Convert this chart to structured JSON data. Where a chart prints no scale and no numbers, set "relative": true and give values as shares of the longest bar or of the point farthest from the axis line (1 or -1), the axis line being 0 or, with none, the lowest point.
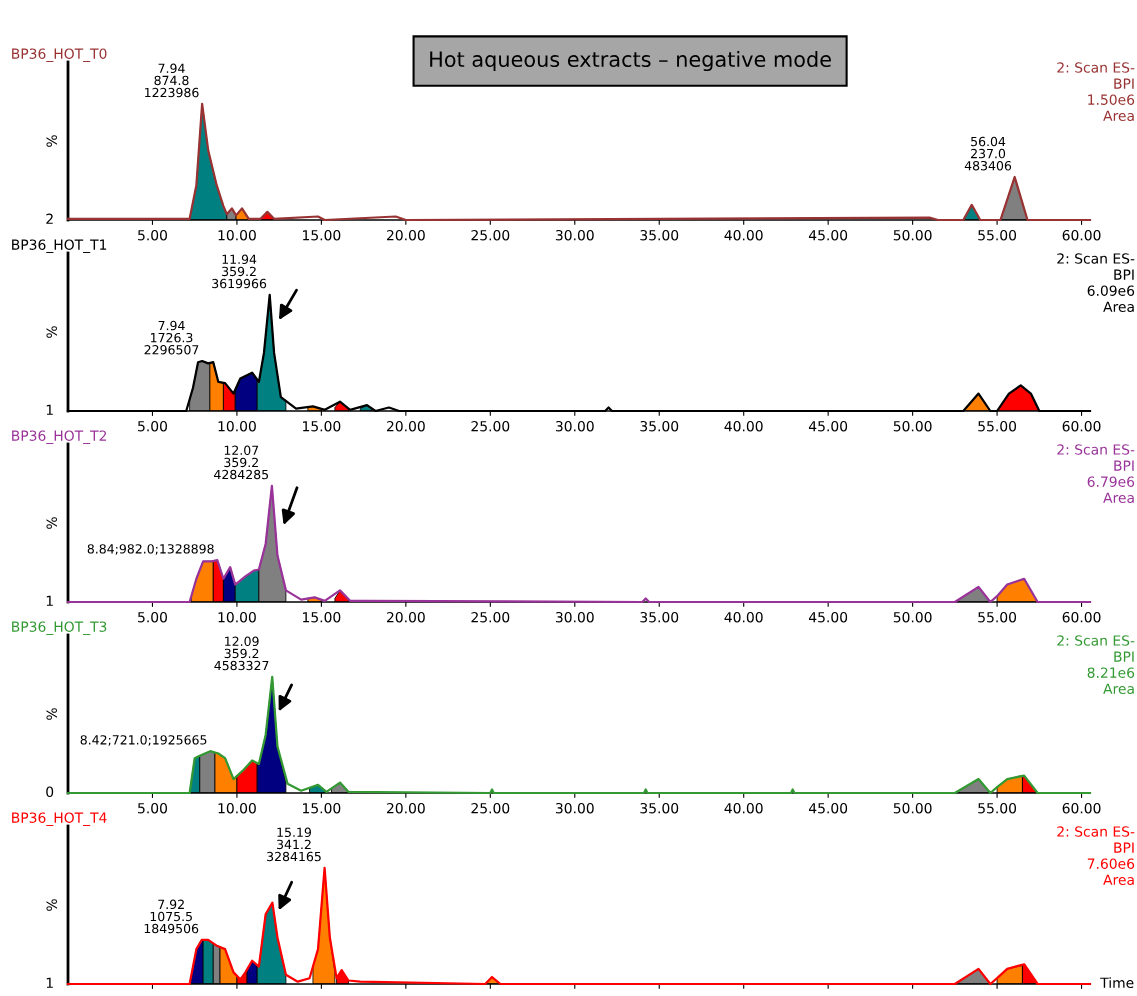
{
  "chart_data": [
    {
      "type": "line",
      "relative": true,
      "title": "BP36_HOT_T0",
      "subtitle": "2: Scan ES-\nBPI\n1.50e6\nArea",
      "ylabel": "%",
      "xlim": [
        0,
        60.5
      ],
      "xticks": [
        {
          "value": 5,
          "label": "5.00"
        },
        {
          "value": 10,
          "label": "10.00"
        },
        {
          "value": 15,
          "label": "15.00"
        },
        {
          "value": 20,
          "label": "20.00"
        },
        {
          "value": 25,
          "label": "25.00"
        },
        {
          "value": 30,
          "label": "30.00"
        },
        {
          "value": 35,
          "label": "35.00"
        },
        {
          "value": 40,
          "label": "40.00"
        },
        {
          "value": 45,
          "label": "45.00"
        },
        {
          "value": 50,
          "label": "50.00"
        },
        {
          "value": 55,
          "label": "55.00"
        },
        {
          "value": 60,
          "label": "60.00"
        }
      ],
      "grid": false,
      "marker": "none",
      "line_style": "solid",
      "annotations": [
        "Hot aqueous extracts – negative mode",
        {
          "text": "7.94\n874.8\n1223986",
          "x": 7.94,
          "y": 1.0
        },
        {
          "text": "56.04\n237.0\n483406",
          "x": 56.04,
          "y": 0.37
        },
        {
          "text": "2",
          "x": 0,
          "y": 0
        }
      ],
      "series": [
        {
          "type": "line",
          "color": "#993333",
          "x": [
            0,
            7.2,
            7.6,
            7.94,
            8.3,
            8.8,
            9.2,
            9.4,
            9.7,
            9.95,
            10.3,
            10.7,
            11.4,
            11.8,
            12.2,
            14.8,
            15.2,
            19.4,
            20,
            51,
            51.5,
            53,
            53.5,
            54,
            55.2,
            56.04,
            56.8,
            60.5
          ],
          "values": [
            0.01,
            0.01,
            0.3,
            1.0,
            0.6,
            0.3,
            0.12,
            0.05,
            0.1,
            0.04,
            0.1,
            0.01,
            0.01,
            0.07,
            0.01,
            0.03,
            0,
            0.03,
            0,
            0.02,
            0,
            0,
            0.13,
            0,
            0,
            0.37,
            0,
            0
          ]
        },
        {
          "type": "area",
          "color": "#008080",
          "x": [
            7.2,
            7.6,
            7.94,
            8.3,
            8.8,
            9.2,
            9.4
          ],
          "values": [
            0.01,
            0.3,
            1.0,
            0.6,
            0.3,
            0.12,
            0.05
          ]
        },
        {
          "type": "area",
          "color": "#808080",
          "x": [
            9.4,
            9.7,
            9.95
          ],
          "values": [
            0.05,
            0.1,
            0.04
          ]
        },
        {
          "type": "area",
          "color": "#ff8000",
          "x": [
            9.95,
            10.3,
            10.7
          ],
          "values": [
            0.04,
            0.1,
            0.01
          ]
        },
        {
          "type": "area",
          "color": "#ff0000",
          "x": [
            11.4,
            11.8,
            12.2
          ],
          "values": [
            0.01,
            0.07,
            0.01
          ]
        },
        {
          "type": "area",
          "color": "#008080",
          "x": [
            53,
            53.5,
            54
          ],
          "values": [
            0,
            0.13,
            0
          ]
        },
        {
          "type": "area",
          "color": "#808080",
          "x": [
            55.2,
            56.04,
            56.8
          ],
          "values": [
            0,
            0.37,
            0
          ]
        }
      ]
    },
    {
      "type": "line",
      "relative": true,
      "title": "BP36_HOT_T1",
      "subtitle": "2: Scan ES-\nBPI\n6.09e6\nArea",
      "ylabel": "%",
      "xlim": [
        0,
        60.5
      ],
      "xticks": [
        {
          "value": 5,
          "label": "5.00"
        },
        {
          "value": 10,
          "label": "10.00"
        },
        {
          "value": 15,
          "label": "15.00"
        },
        {
          "value": 20,
          "label": "20.00"
        },
        {
          "value": 25,
          "label": "25.00"
        },
        {
          "value": 30,
          "label": "30.00"
        },
        {
          "value": 35,
          "label": "35.00"
        },
        {
          "value": 40,
          "label": "40.00"
        },
        {
          "value": 45,
          "label": "45.00"
        },
        {
          "value": 50,
          "label": "50.00"
        },
        {
          "value": 55,
          "label": "55.00"
        },
        {
          "value": 60,
          "label": "60.00"
        }
      ],
      "grid": false,
      "marker": "none",
      "line_style": "solid",
      "annotations": [
        {
          "text": "11.94\n359.2\n3619966",
          "x": 11.94,
          "y": 1.0
        },
        {
          "text": "7.94\n1726.3\n2296507",
          "x": 7.94,
          "y": 0.43
        },
        {
          "text": "1",
          "x": 0,
          "y": 0
        }
      ],
      "series": [
        {
          "type": "line",
          "color": "#000000",
          "x": [
            0,
            7.0,
            7.4,
            7.7,
            7.94,
            8.3,
            8.6,
            8.9,
            9.3,
            9.8,
            10.2,
            10.9,
            11.3,
            11.6,
            11.94,
            12.2,
            12.6,
            13.5,
            14.5,
            15.2,
            16.1,
            16.7,
            17.7,
            18.2,
            19,
            19.6,
            31.8,
            32,
            32.2,
            53,
            53.9,
            54.6,
            55,
            55.7,
            56.4,
            57,
            57.5,
            60.5
          ],
          "values": [
            0,
            0,
            0.2,
            0.42,
            0.43,
            0.41,
            0.42,
            0.25,
            0.24,
            0.15,
            0.28,
            0.33,
            0.25,
            0.5,
            1.0,
            0.5,
            0.12,
            0.02,
            0.04,
            0.01,
            0.08,
            0.01,
            0.05,
            0,
            0.03,
            0,
            0,
            0.03,
            0,
            0,
            0.15,
            0,
            0,
            0.15,
            0.22,
            0.15,
            0,
            0
          ]
        },
        {
          "type": "area",
          "color": "#808080",
          "x": [
            7.2,
            7.4,
            7.7,
            7.94,
            8.3,
            8.4
          ],
          "values": [
            0.1,
            0.2,
            0.42,
            0.43,
            0.41,
            0.41
          ]
        },
        {
          "type": "area",
          "color": "#ff8000",
          "x": [
            8.4,
            8.6,
            8.9,
            9.2
          ],
          "values": [
            0.41,
            0.42,
            0.25,
            0.24
          ]
        },
        {
          "type": "area",
          "color": "#ff0000",
          "x": [
            9.2,
            9.3,
            9.8,
            9.9
          ],
          "values": [
            0.24,
            0.24,
            0.15,
            0.17
          ]
        },
        {
          "type": "area",
          "color": "#000080",
          "x": [
            9.9,
            10.2,
            10.9,
            11.2
          ],
          "values": [
            0.17,
            0.28,
            0.33,
            0.27
          ]
        },
        {
          "type": "area",
          "color": "#008080",
          "x": [
            11.2,
            11.3,
            11.6,
            11.94,
            12.2,
            12.6,
            12.9
          ],
          "values": [
            0.27,
            0.25,
            0.5,
            1.0,
            0.5,
            0.12,
            0.09
          ]
        },
        {
          "type": "area",
          "color": "#ff8000",
          "x": [
            14.2,
            14.5,
            15.0
          ],
          "values": [
            0.03,
            0.04,
            0.02
          ]
        },
        {
          "type": "area",
          "color": "#ff0000",
          "x": [
            15.8,
            16.1,
            16.6
          ],
          "values": [
            0.03,
            0.08,
            0.02
          ]
        },
        {
          "type": "area",
          "color": "#008080",
          "x": [
            17.3,
            17.7,
            18.0
          ],
          "values": [
            0.02,
            0.05,
            0.02
          ]
        },
        {
          "type": "area",
          "color": "#ff8000",
          "x": [
            53,
            53.9,
            54.6
          ],
          "values": [
            0,
            0.15,
            0
          ]
        },
        {
          "type": "area",
          "color": "#ff0000",
          "x": [
            55,
            55.7,
            56.4,
            57,
            57.5
          ],
          "values": [
            0,
            0.15,
            0.22,
            0.15,
            0
          ]
        }
      ]
    },
    {
      "type": "line",
      "relative": true,
      "title": "BP36_HOT_T2",
      "subtitle": "2: Scan ES-\nBPI\n6.79e6\nArea",
      "ylabel": "%",
      "xlim": [
        0,
        60.5
      ],
      "xticks": [
        {
          "value": 5,
          "label": "5.00"
        },
        {
          "value": 10,
          "label": "10.00"
        },
        {
          "value": 15,
          "label": "15.00"
        },
        {
          "value": 20,
          "label": "20.00"
        },
        {
          "value": 25,
          "label": "25.00"
        },
        {
          "value": 30,
          "label": "30.00"
        },
        {
          "value": 35,
          "label": "35.00"
        },
        {
          "value": 40,
          "label": "40.00"
        },
        {
          "value": 45,
          "label": "45.00"
        },
        {
          "value": 50,
          "label": "50.00"
        },
        {
          "value": 55,
          "label": "55.00"
        },
        {
          "value": 60,
          "label": "60.00"
        }
      ],
      "grid": false,
      "marker": "none",
      "line_style": "solid",
      "annotations": [
        {
          "text": "12.07\n359.2\n4284285",
          "x": 12.07,
          "y": 1.0
        },
        {
          "text": "8.84;982.0;1328898",
          "x": 8.84,
          "y": 0.36
        },
        {
          "text": "1",
          "x": 0,
          "y": 0
        }
      ],
      "series": [
        {
          "type": "line",
          "color": "#993399",
          "x": [
            0,
            7.2,
            7.6,
            8.0,
            8.5,
            8.84,
            9.2,
            9.6,
            9.9,
            10.5,
            11.0,
            11.3,
            11.7,
            12.07,
            12.4,
            12.9,
            13.8,
            14.6,
            15.2,
            16.1,
            16.7,
            17.6,
            34.0,
            34.2,
            34.4,
            52.5,
            53.9,
            54.6,
            55,
            55.6,
            56.6,
            57.4,
            60.5
          ],
          "values": [
            0,
            0,
            0.2,
            0.35,
            0.35,
            0.36,
            0.2,
            0.3,
            0.15,
            0.22,
            0.27,
            0.28,
            0.5,
            1.0,
            0.4,
            0.1,
            0.02,
            0.04,
            0.01,
            0.1,
            0.01,
            0.01,
            0,
            0.03,
            0,
            0,
            0.13,
            0,
            0.05,
            0.15,
            0.2,
            0,
            0
          ]
        },
        {
          "type": "area",
          "color": "#ff8000",
          "x": [
            7.3,
            7.6,
            8.0,
            8.5,
            8.6
          ],
          "values": [
            0.05,
            0.2,
            0.35,
            0.35,
            0.35
          ]
        },
        {
          "type": "area",
          "color": "#ff0000",
          "x": [
            8.6,
            8.84,
            9.2
          ],
          "values": [
            0.35,
            0.36,
            0.2
          ]
        },
        {
          "type": "area",
          "color": "#000080",
          "x": [
            9.2,
            9.6,
            9.9
          ],
          "values": [
            0.2,
            0.3,
            0.15
          ]
        },
        {
          "type": "area",
          "color": "#008080",
          "x": [
            9.9,
            10.5,
            11.0,
            11.3
          ],
          "values": [
            0.15,
            0.22,
            0.27,
            0.28
          ]
        },
        {
          "type": "area",
          "color": "#808080",
          "x": [
            11.3,
            11.7,
            12.07,
            12.4,
            12.9
          ],
          "values": [
            0.28,
            0.5,
            1.0,
            0.4,
            0.1
          ]
        },
        {
          "type": "area",
          "color": "#ff8000",
          "x": [
            14.2,
            14.6,
            15.0
          ],
          "values": [
            0.03,
            0.04,
            0.02
          ]
        },
        {
          "type": "area",
          "color": "#ff0000",
          "x": [
            15.8,
            16.1,
            16.6
          ],
          "values": [
            0.03,
            0.1,
            0.02
          ]
        },
        {
          "type": "area",
          "color": "#808080",
          "x": [
            52.5,
            53.9,
            54.6
          ],
          "values": [
            0,
            0.13,
            0
          ]
        },
        {
          "type": "area",
          "color": "#ff8000",
          "x": [
            55,
            55.6,
            56.6,
            57.4
          ],
          "values": [
            0.05,
            0.15,
            0.2,
            0
          ]
        }
      ]
    },
    {
      "type": "line",
      "relative": true,
      "title": "BP36_HOT_T3",
      "subtitle": "2: Scan ES-\nBPI\n8.21e6\nArea",
      "ylabel": "%",
      "xlim": [
        0,
        60.5
      ],
      "xticks": [
        {
          "value": 5,
          "label": "5.00"
        },
        {
          "value": 10,
          "label": "10.00"
        },
        {
          "value": 15,
          "label": "15.00"
        },
        {
          "value": 20,
          "label": "20.00"
        },
        {
          "value": 25,
          "label": "25.00"
        },
        {
          "value": 30,
          "label": "30.00"
        },
        {
          "value": 35,
          "label": "35.00"
        },
        {
          "value": 40,
          "label": "40.00"
        },
        {
          "value": 45,
          "label": "45.00"
        },
        {
          "value": 50,
          "label": "50.00"
        },
        {
          "value": 55,
          "label": "55.00"
        },
        {
          "value": 60,
          "label": "60.00"
        }
      ],
      "grid": false,
      "marker": "none",
      "line_style": "solid",
      "annotations": [
        {
          "text": "12.09\n359.2\n4583327",
          "x": 12.09,
          "y": 1.0
        },
        {
          "text": "8.42;721.0;1925665",
          "x": 8.42,
          "y": 0.36
        },
        {
          "text": "0",
          "x": 0,
          "y": 0
        }
      ],
      "series": [
        {
          "type": "line",
          "color": "#339933",
          "x": [
            0,
            7.2,
            7.5,
            7.8,
            8.42,
            8.9,
            9.3,
            9.8,
            10.4,
            10.9,
            11.3,
            11.7,
            12.09,
            12.4,
            13.0,
            13.8,
            14.8,
            15.3,
            16.1,
            16.6,
            25.0,
            25.1,
            25.2,
            34.1,
            34.2,
            34.3,
            42.8,
            42.9,
            43.0,
            52.5,
            53.9,
            54.6,
            55,
            55.6,
            56.6,
            57.4,
            60.5
          ],
          "values": [
            0,
            0,
            0.3,
            0.32,
            0.36,
            0.34,
            0.3,
            0.12,
            0.2,
            0.28,
            0.25,
            0.5,
            1.0,
            0.4,
            0.08,
            0.02,
            0.07,
            0.01,
            0.09,
            0.01,
            0,
            0.03,
            0,
            0,
            0.03,
            0,
            0,
            0.03,
            0,
            0,
            0.12,
            0,
            0.05,
            0.12,
            0.15,
            0,
            0
          ]
        },
        {
          "type": "area",
          "color": "#008080",
          "x": [
            7.2,
            7.5,
            7.8
          ],
          "values": [
            0,
            0.3,
            0.32
          ]
        },
        {
          "type": "area",
          "color": "#808080",
          "x": [
            7.8,
            8.42,
            8.7
          ],
          "values": [
            0.32,
            0.36,
            0.35
          ]
        },
        {
          "type": "area",
          "color": "#ff8000",
          "x": [
            8.7,
            8.9,
            9.3,
            9.8,
            10.0
          ],
          "values": [
            0.35,
            0.34,
            0.3,
            0.12,
            0.15
          ]
        },
        {
          "type": "area",
          "color": "#ff0000",
          "x": [
            10.0,
            10.4,
            10.9,
            11.2
          ],
          "values": [
            0.15,
            0.2,
            0.28,
            0.26
          ]
        },
        {
          "type": "area",
          "color": "#000080",
          "x": [
            11.2,
            11.3,
            11.7,
            12.09,
            12.4,
            12.9
          ],
          "values": [
            0.26,
            0.25,
            0.5,
            1.0,
            0.4,
            0.09
          ]
        },
        {
          "type": "area",
          "color": "#008080",
          "x": [
            14.3,
            14.8,
            15.3
          ],
          "values": [
            0.04,
            0.07,
            0.01
          ]
        },
        {
          "type": "area",
          "color": "#808080",
          "x": [
            15.6,
            16.1,
            16.6
          ],
          "values": [
            0.04,
            0.09,
            0.01
          ]
        },
        {
          "type": "area",
          "color": "#808080",
          "x": [
            52.5,
            53.9,
            54.6
          ],
          "values": [
            0,
            0.12,
            0
          ]
        },
        {
          "type": "area",
          "color": "#ff8000",
          "x": [
            55,
            55.6,
            56.5
          ],
          "values": [
            0.05,
            0.12,
            0.15
          ]
        },
        {
          "type": "area",
          "color": "#ff0000",
          "x": [
            56.5,
            56.6,
            57.4
          ],
          "values": [
            0.15,
            0.15,
            0
          ]
        }
      ]
    },
    {
      "type": "line",
      "relative": true,
      "title": "BP36_HOT_T4",
      "subtitle": "2: Scan ES-\nBPI\n7.60e6\nArea",
      "ylabel": "%",
      "xlabel": "Time",
      "xlim": [
        0,
        60.5
      ],
      "xticks": [
        5,
        10,
        15,
        20,
        25,
        30,
        35,
        40,
        45,
        50,
        55,
        60
      ],
      "tick_labels": false,
      "grid": false,
      "marker": "none",
      "line_style": "solid",
      "annotations": [
        {
          "text": "7.92\n1075.5\n1849506",
          "x": 7.92,
          "y": 0.38
        },
        {
          "text": "15.19\n341.2\n3284165",
          "x": 15.19,
          "y": 1.0
        },
        {
          "text": "1",
          "x": 0,
          "y": 0
        }
      ],
      "series": [
        {
          "type": "line",
          "color": "#ff0000",
          "x": [
            0,
            7.2,
            7.6,
            7.92,
            8.3,
            8.8,
            9.3,
            9.8,
            10.2,
            10.5,
            10.9,
            11.3,
            11.7,
            12.1,
            12.4,
            12.9,
            13.6,
            14.3,
            14.8,
            15.19,
            15.5,
            15.9,
            16.2,
            16.6,
            17.3,
            24.7,
            25.1,
            25.6,
            52.5,
            53.9,
            54.6,
            55,
            55.6,
            56.6,
            57.4,
            60.5
          ],
          "values": [
            0,
            0,
            0.3,
            0.38,
            0.38,
            0.33,
            0.3,
            0.1,
            0.04,
            0.1,
            0.2,
            0.15,
            0.6,
            0.7,
            0.4,
            0.08,
            0.02,
            0.05,
            0.3,
            1.0,
            0.4,
            0.05,
            0.12,
            0.03,
            0.02,
            0,
            0.06,
            0,
            0,
            0.13,
            0,
            0.05,
            0.13,
            0.17,
            0,
            0
          ]
        },
        {
          "type": "area",
          "color": "#000080",
          "x": [
            7.2,
            7.6,
            7.92,
            8.0
          ],
          "values": [
            0,
            0.3,
            0.38,
            0.38
          ]
        },
        {
          "type": "area",
          "color": "#008080",
          "x": [
            8.0,
            8.3,
            8.6
          ],
          "values": [
            0.38,
            0.38,
            0.35
          ]
        },
        {
          "type": "area",
          "color": "#808080",
          "x": [
            8.6,
            8.8,
            9.0
          ],
          "values": [
            0.35,
            0.33,
            0.32
          ]
        },
        {
          "type": "area",
          "color": "#ff8000",
          "x": [
            9.0,
            9.3,
            9.8,
            10.0
          ],
          "values": [
            0.32,
            0.3,
            0.1,
            0.07
          ]
        },
        {
          "type": "area",
          "color": "#ff0000",
          "x": [
            10.0,
            10.2,
            10.5,
            10.6
          ],
          "values": [
            0.07,
            0.04,
            0.1,
            0.12
          ]
        },
        {
          "type": "area",
          "color": "#000080",
          "x": [
            10.6,
            10.9,
            11.2
          ],
          "values": [
            0.12,
            0.2,
            0.16
          ]
        },
        {
          "type": "area",
          "color": "#008080",
          "x": [
            11.2,
            11.3,
            11.7,
            12.1,
            12.4,
            12.9
          ],
          "values": [
            0.16,
            0.15,
            0.6,
            0.7,
            0.4,
            0.08
          ]
        },
        {
          "type": "area",
          "color": "#ff8000",
          "x": [
            14.5,
            14.8,
            15.19,
            15.5,
            15.8
          ],
          "values": [
            0.15,
            0.3,
            1.0,
            0.4,
            0.1
          ]
        },
        {
          "type": "area",
          "color": "#ff0000",
          "x": [
            15.9,
            16.2,
            16.6
          ],
          "values": [
            0.05,
            0.12,
            0.03
          ]
        },
        {
          "type": "area",
          "color": "#ff8000",
          "x": [
            24.7,
            25.1,
            25.6
          ],
          "values": [
            0,
            0.06,
            0
          ]
        },
        {
          "type": "area",
          "color": "#808080",
          "x": [
            52.5,
            53.9,
            54.6
          ],
          "values": [
            0,
            0.13,
            0
          ]
        },
        {
          "type": "area",
          "color": "#ff8000",
          "x": [
            55,
            55.6,
            56.5
          ],
          "values": [
            0.05,
            0.13,
            0.16
          ]
        },
        {
          "type": "area",
          "color": "#ff0000",
          "x": [
            56.5,
            56.6,
            57.4
          ],
          "values": [
            0.16,
            0.17,
            0
          ]
        }
      ]
    }
  ]
}
